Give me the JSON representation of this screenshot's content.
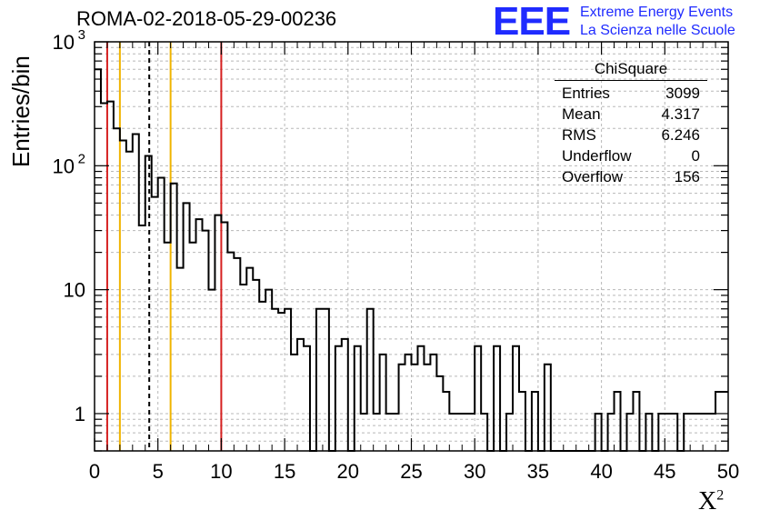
{
  "title": "ROMA-02-2018-05-29-00236",
  "logo": {
    "mark": "EEE",
    "line1": "Extreme Energy Events",
    "line2": "La Scienza nelle Scuole"
  },
  "stats_box": {
    "header": "ChiSquare",
    "rows": [
      {
        "label": "Entries",
        "value": "3099"
      },
      {
        "label": "Mean",
        "value": "4.317"
      },
      {
        "label": "RMS",
        "value": "6.246"
      },
      {
        "label": "Underflow",
        "value": "0"
      },
      {
        "label": "Overflow",
        "value": "156"
      }
    ]
  },
  "chart_data": {
    "type": "histogram",
    "title": "ROMA-02-2018-05-29-00236",
    "xlabel": "X",
    "xlabel_superscript": "2",
    "ylabel": "Entries/bin",
    "xlim": [
      0,
      50
    ],
    "ylim": [
      0.5,
      1000
    ],
    "yscale": "log",
    "grid": true,
    "x_ticks": [
      0,
      5,
      10,
      15,
      20,
      25,
      30,
      35,
      40,
      45,
      50
    ],
    "y_ticks": [
      {
        "value": 1,
        "label": "1"
      },
      {
        "value": 10,
        "label": "10"
      },
      {
        "value": 100,
        "label": "10",
        "exp": "2"
      },
      {
        "value": 1000,
        "label": "10",
        "exp": "3"
      }
    ],
    "bin_width": 0.5,
    "bin_start": 0,
    "values": [
      600,
      320,
      330,
      200,
      160,
      130,
      180,
      33,
      120,
      56,
      80,
      24,
      72,
      15,
      50,
      24,
      37,
      30,
      10,
      40,
      35,
      20,
      18,
      11,
      15,
      12,
      8,
      10,
      7,
      6.5,
      7,
      3,
      4,
      3.5,
      0,
      7,
      7,
      0,
      3.5,
      4,
      0,
      3.5,
      1,
      7,
      1,
      3,
      1,
      1,
      2.5,
      3,
      2.5,
      3.5,
      2.5,
      3,
      2,
      1.5,
      1,
      1,
      1,
      1,
      3.5,
      1,
      0,
      3.5,
      0,
      1,
      3.5,
      1.5,
      0,
      1.5,
      0.4,
      2.5,
      0,
      0,
      0,
      0,
      0,
      0,
      0,
      1,
      0,
      1,
      1.5,
      0,
      1,
      1.5,
      0,
      1,
      0,
      1,
      1,
      1,
      0,
      1,
      1,
      1,
      1,
      1,
      1.5,
      1.5
    ],
    "cut_lines": [
      {
        "x": 1,
        "color": "#d62020",
        "style": "solid"
      },
      {
        "x": 2,
        "color": "#f0b400",
        "style": "solid"
      },
      {
        "x": 4.317,
        "color": "#000000",
        "style": "dashed"
      },
      {
        "x": 6,
        "color": "#f0b400",
        "style": "solid"
      },
      {
        "x": 10,
        "color": "#d62020",
        "style": "solid"
      }
    ]
  }
}
